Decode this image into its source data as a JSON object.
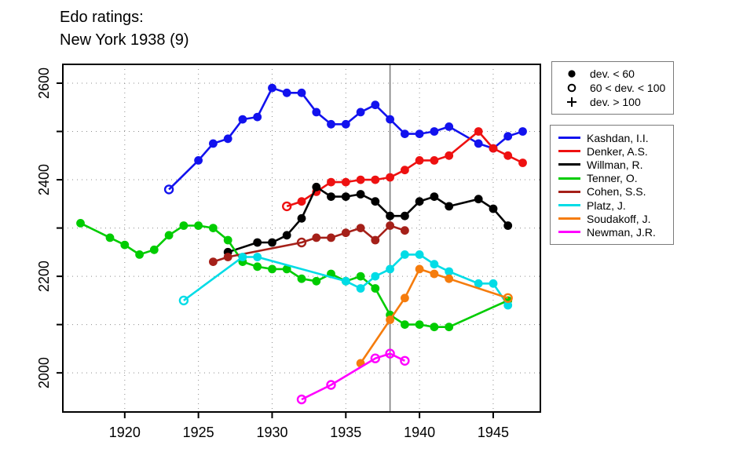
{
  "header": {
    "line1": "Edo ratings:",
    "line2": "New York 1938 (9)"
  },
  "chart_data": {
    "type": "line",
    "title": "Edo ratings: New York 1938 (9)",
    "xlabel": "",
    "ylabel": "",
    "xlim": [
      1915.8,
      1948.2
    ],
    "ylim": [
      1919,
      2639
    ],
    "x_ticks": [
      1920,
      1925,
      1930,
      1935,
      1940,
      1945
    ],
    "y_ticks_labeled": [
      2000,
      2200,
      2400,
      2600
    ],
    "y_ticks_minor": [
      2100,
      2300,
      2500
    ],
    "grid": true,
    "legend_position": "right",
    "event_line": {
      "year": 1938,
      "color": "#7d7d7d"
    },
    "marker_legend": [
      {
        "marker": "filled",
        "label": "dev. < 60"
      },
      {
        "marker": "open",
        "label": "60 < dev. < 100"
      },
      {
        "marker": "plus",
        "label": "dev. > 100"
      }
    ],
    "series": [
      {
        "name": "Kashdan, I.I.",
        "color": "#1212ee",
        "points": [
          [
            1923,
            2380,
            "open"
          ],
          [
            1925,
            2440,
            "filled"
          ],
          [
            1926,
            2475,
            "filled"
          ],
          [
            1927,
            2485,
            "filled"
          ],
          [
            1928,
            2525,
            "filled"
          ],
          [
            1929,
            2530,
            "filled"
          ],
          [
            1930,
            2590,
            "filled"
          ],
          [
            1931,
            2580,
            "filled"
          ],
          [
            1932,
            2580,
            "filled"
          ],
          [
            1933,
            2540,
            "filled"
          ],
          [
            1934,
            2515,
            "filled"
          ],
          [
            1935,
            2515,
            "filled"
          ],
          [
            1936,
            2540,
            "filled"
          ],
          [
            1937,
            2555,
            "filled"
          ],
          [
            1938,
            2525,
            "filled"
          ],
          [
            1939,
            2495,
            "filled"
          ],
          [
            1940,
            2495,
            "filled"
          ],
          [
            1941,
            2500,
            "filled"
          ],
          [
            1942,
            2510,
            "filled"
          ],
          [
            1944,
            2475,
            "filled"
          ],
          [
            1945,
            2465,
            "filled"
          ],
          [
            1946,
            2490,
            "filled"
          ],
          [
            1947,
            2500,
            "filled"
          ]
        ]
      },
      {
        "name": "Denker, A.S.",
        "color": "#ee1111",
        "points": [
          [
            1931,
            2345,
            "open"
          ],
          [
            1932,
            2355,
            "filled"
          ],
          [
            1933,
            2375,
            "filled"
          ],
          [
            1934,
            2395,
            "filled"
          ],
          [
            1935,
            2395,
            "filled"
          ],
          [
            1936,
            2400,
            "filled"
          ],
          [
            1937,
            2400,
            "filled"
          ],
          [
            1938,
            2405,
            "filled"
          ],
          [
            1939,
            2420,
            "filled"
          ],
          [
            1940,
            2440,
            "filled"
          ],
          [
            1941,
            2440,
            "filled"
          ],
          [
            1942,
            2450,
            "filled"
          ],
          [
            1944,
            2500,
            "filled"
          ],
          [
            1945,
            2465,
            "filled"
          ],
          [
            1946,
            2450,
            "filled"
          ],
          [
            1947,
            2435,
            "filled"
          ]
        ]
      },
      {
        "name": "Willman, R.",
        "color": "#000000",
        "points": [
          [
            1927,
            2250,
            "filled"
          ],
          [
            1929,
            2270,
            "filled"
          ],
          [
            1930,
            2270,
            "filled"
          ],
          [
            1931,
            2285,
            "filled"
          ],
          [
            1932,
            2320,
            "filled"
          ],
          [
            1933,
            2385,
            "filled"
          ],
          [
            1934,
            2365,
            "filled"
          ],
          [
            1935,
            2365,
            "filled"
          ],
          [
            1936,
            2370,
            "filled"
          ],
          [
            1937,
            2355,
            "filled"
          ],
          [
            1938,
            2325,
            "filled"
          ],
          [
            1939,
            2325,
            "filled"
          ],
          [
            1940,
            2355,
            "filled"
          ],
          [
            1941,
            2365,
            "filled"
          ],
          [
            1942,
            2345,
            "filled"
          ],
          [
            1944,
            2360,
            "filled"
          ],
          [
            1945,
            2340,
            "filled"
          ],
          [
            1946,
            2305,
            "filled"
          ]
        ]
      },
      {
        "name": "Tenner, O.",
        "color": "#00cc00",
        "points": [
          [
            1917,
            2310,
            "filled"
          ],
          [
            1919,
            2280,
            "filled"
          ],
          [
            1920,
            2265,
            "filled"
          ],
          [
            1921,
            2245,
            "filled"
          ],
          [
            1922,
            2255,
            "filled"
          ],
          [
            1923,
            2285,
            "filled"
          ],
          [
            1924,
            2305,
            "filled"
          ],
          [
            1925,
            2305,
            "filled"
          ],
          [
            1926,
            2300,
            "filled"
          ],
          [
            1927,
            2275,
            "filled"
          ],
          [
            1928,
            2230,
            "filled"
          ],
          [
            1929,
            2220,
            "filled"
          ],
          [
            1930,
            2215,
            "filled"
          ],
          [
            1931,
            2215,
            "filled"
          ],
          [
            1932,
            2195,
            "filled"
          ],
          [
            1933,
            2190,
            "filled"
          ],
          [
            1934,
            2205,
            "filled"
          ],
          [
            1935,
            2190,
            "filled"
          ],
          [
            1936,
            2200,
            "filled"
          ],
          [
            1937,
            2175,
            "filled"
          ],
          [
            1938,
            2120,
            "filled"
          ],
          [
            1939,
            2100,
            "filled"
          ],
          [
            1940,
            2100,
            "filled"
          ],
          [
            1941,
            2095,
            "filled"
          ],
          [
            1942,
            2095,
            "filled"
          ],
          [
            1946,
            2150,
            "filled"
          ]
        ]
      },
      {
        "name": "Cohen, S.S.",
        "color": "#a52019",
        "points": [
          [
            1926,
            2230,
            "filled"
          ],
          [
            1927,
            2240,
            "filled"
          ],
          [
            1932,
            2270,
            "open"
          ],
          [
            1933,
            2280,
            "filled"
          ],
          [
            1934,
            2280,
            "filled"
          ],
          [
            1935,
            2290,
            "filled"
          ],
          [
            1936,
            2300,
            "filled"
          ],
          [
            1937,
            2275,
            "filled"
          ],
          [
            1938,
            2305,
            "filled"
          ],
          [
            1939,
            2295,
            "filled"
          ]
        ]
      },
      {
        "name": "Platz, J.",
        "color": "#00dce6",
        "points": [
          [
            1924,
            2150,
            "open"
          ],
          [
            1928,
            2240,
            "filled"
          ],
          [
            1929,
            2240,
            "filled"
          ],
          [
            1935,
            2190,
            "filled"
          ],
          [
            1936,
            2175,
            "filled"
          ],
          [
            1937,
            2200,
            "filled"
          ],
          [
            1938,
            2215,
            "filled"
          ],
          [
            1939,
            2245,
            "filled"
          ],
          [
            1940,
            2245,
            "filled"
          ],
          [
            1941,
            2225,
            "filled"
          ],
          [
            1942,
            2210,
            "filled"
          ],
          [
            1944,
            2185,
            "filled"
          ],
          [
            1945,
            2185,
            "filled"
          ],
          [
            1946,
            2140,
            "filled"
          ]
        ]
      },
      {
        "name": "Soudakoff, J.",
        "color": "#f57c0d",
        "points": [
          [
            1936,
            2020,
            "filled"
          ],
          [
            1938,
            2110,
            "filled"
          ],
          [
            1939,
            2155,
            "filled"
          ],
          [
            1940,
            2215,
            "filled"
          ],
          [
            1941,
            2205,
            "filled"
          ],
          [
            1942,
            2195,
            "filled"
          ],
          [
            1946,
            2155,
            "open"
          ]
        ]
      },
      {
        "name": "Newman, J.R.",
        "color": "#ff00ff",
        "points": [
          [
            1932,
            1945,
            "open"
          ],
          [
            1934,
            1975,
            "open"
          ],
          [
            1937,
            2030,
            "open"
          ],
          [
            1938,
            2040,
            "open"
          ],
          [
            1939,
            2025,
            "open"
          ]
        ]
      }
    ]
  }
}
